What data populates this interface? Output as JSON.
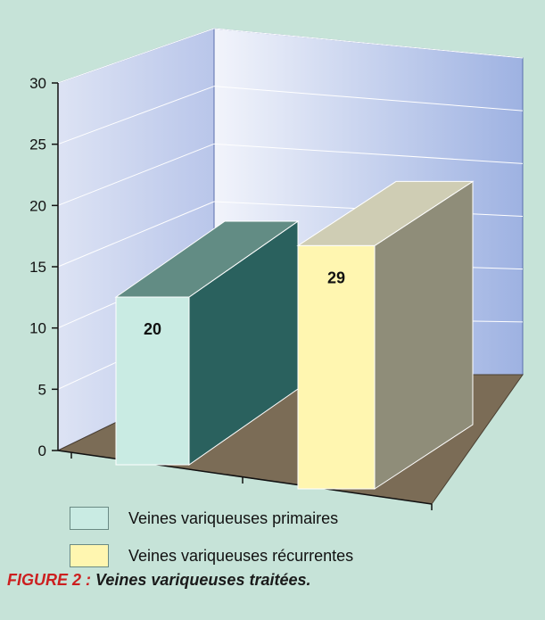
{
  "chart_data": {
    "type": "bar",
    "categories": [
      "Veines variqueuses primaires",
      "Veines variqueuses récurrentes"
    ],
    "values": [
      20,
      29
    ],
    "data_labels": [
      "20",
      "29"
    ],
    "ylim": [
      0,
      30
    ],
    "yticks": [
      "0",
      "5",
      "10",
      "15",
      "20",
      "25",
      "30"
    ],
    "grid": true,
    "three_d": true,
    "legend_position": "bottom",
    "colors": {
      "series_front": [
        "#c9ebe3",
        "#fff6b0"
      ],
      "series_side": [
        "#2a615e",
        "#8f8d79"
      ],
      "series_top": [
        "#628c84",
        "#cfcdb4"
      ],
      "floor": "#7b6c56",
      "back_wall": "#a6b9e6",
      "background": "#c6e3d8"
    }
  },
  "legend": [
    {
      "label": "Veines variqueuses primaires",
      "color": "#c9ebe3"
    },
    {
      "label": "Veines variqueuses récurrentes",
      "color": "#fff6b0"
    }
  ],
  "caption": {
    "number": "FIGURE 2 :",
    "text": "Veines variqueuses traitées.",
    "number_color": "#cc1f1f"
  }
}
